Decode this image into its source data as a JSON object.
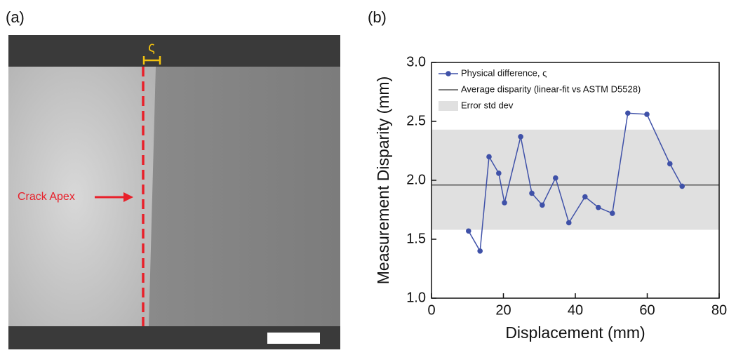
{
  "panel_labels": [
    "(a)",
    "(b)"
  ],
  "image": {
    "symbol": "ς",
    "annotation": "Crack Apex"
  },
  "chart_data": {
    "type": "line",
    "xlabel": "Displacement (mm)",
    "ylabel": "Measurement Disparity (mm)",
    "x": [
      10.3,
      13.5,
      16.0,
      18.7,
      20.3,
      24.8,
      27.9,
      30.8,
      34.5,
      38.2,
      42.7,
      46.4,
      50.3,
      54.6,
      59.9,
      66.3,
      69.7
    ],
    "series": [
      {
        "name": "Physical difference, ς",
        "color": "#3f51a8",
        "values": [
          1.57,
          1.4,
          2.2,
          2.06,
          1.81,
          2.37,
          1.89,
          1.79,
          2.02,
          1.64,
          1.86,
          1.77,
          1.72,
          2.57,
          2.56,
          2.14,
          1.95
        ]
      }
    ],
    "average": {
      "name": "Average disparity (linear-fit vs ASTM D5528)",
      "value": 1.96,
      "color": "#333333"
    },
    "band": {
      "name": "Error std dev",
      "low": 1.58,
      "high": 2.43,
      "color": "#e0e0e0"
    },
    "xlim": [
      0,
      80
    ],
    "xticks": [
      0,
      20,
      40,
      60,
      80
    ],
    "ylim": [
      1.0,
      3.0
    ],
    "yticks": [
      {
        "value": 1.0,
        "label": "1.0"
      },
      {
        "value": 1.5,
        "label": "1.5"
      },
      {
        "value": 2.0,
        "label": "2.0"
      },
      {
        "value": 2.5,
        "label": "2.5"
      },
      {
        "value": 3.0,
        "label": "3.0"
      }
    ]
  }
}
